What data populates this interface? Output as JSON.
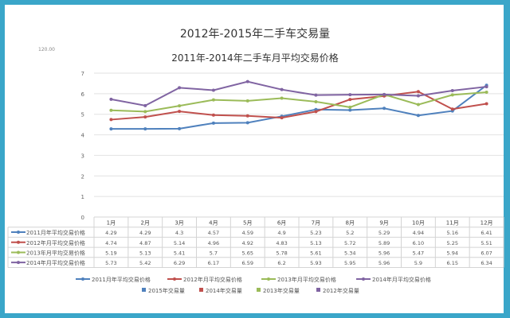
{
  "chart_data": {
    "type": "line",
    "outer_title": "2012年-2015年二手车交易量",
    "outer_axis_fragment": "120.00",
    "title": "2011年-2014年二手车月平均交易价格",
    "categories": [
      "1月",
      "2月",
      "3月",
      "4月",
      "5月",
      "6月",
      "7月",
      "8月",
      "9月",
      "10月",
      "11月",
      "12月"
    ],
    "ylim": [
      0,
      7
    ],
    "yticks": [
      0,
      1,
      2,
      3,
      4,
      5,
      6,
      7
    ],
    "grid": true,
    "legend_position": "bottom",
    "series": [
      {
        "name": "2011月年平均交易价格",
        "color": "#4f81bd",
        "values": [
          4.29,
          4.29,
          4.3,
          4.57,
          4.59,
          4.9,
          5.23,
          5.2,
          5.29,
          4.94,
          5.16,
          6.41
        ]
      },
      {
        "name": "2012年月平均交易价格",
        "color": "#c0504d",
        "values": [
          4.74,
          4.87,
          5.14,
          4.96,
          4.92,
          4.83,
          5.13,
          5.72,
          5.89,
          6.1,
          5.25,
          5.51
        ]
      },
      {
        "name": "2013年月平均交易价格",
        "color": "#9bbb59",
        "values": [
          5.19,
          5.13,
          5.41,
          5.7,
          5.65,
          5.78,
          5.61,
          5.34,
          5.96,
          5.47,
          5.94,
          6.07
        ]
      },
      {
        "name": "2014年月平均交易价格",
        "color": "#8064a2",
        "values": [
          5.73,
          5.42,
          6.29,
          6.17,
          6.59,
          6.2,
          5.93,
          5.95,
          5.96,
          5.9,
          6.15,
          6.34
        ]
      }
    ],
    "table_labels": [
      "2011月年平均交易价格",
      "2012年月平均交易价格",
      "2013年月平均交易价格",
      "2014年月平均交易价格"
    ],
    "table_values": [
      [
        "4.29",
        "4.29",
        "4.3",
        "4.57",
        "4.59",
        "4.9",
        "5.23",
        "5.2",
        "5.29",
        "4.94",
        "5.16",
        "6.41"
      ],
      [
        "4.74",
        "4.87",
        "5.14",
        "4.96",
        "4.92",
        "4.83",
        "5.13",
        "5.72",
        "5.89",
        "6.10",
        "5.25",
        "5.51"
      ],
      [
        "5.19",
        "5.13",
        "5.41",
        "5.7",
        "5.65",
        "5.78",
        "5.61",
        "5.34",
        "5.96",
        "5.47",
        "5.94",
        "6.07"
      ],
      [
        "5.73",
        "5.42",
        "6.29",
        "6.17",
        "6.59",
        "6.2",
        "5.93",
        "5.95",
        "5.96",
        "5.9",
        "6.15",
        "6.34"
      ]
    ],
    "bar_legend": [
      {
        "name": "2015年交易量",
        "color": "#4f81bd"
      },
      {
        "name": "2014年交易量",
        "color": "#c0504d"
      },
      {
        "name": "2013年交易量",
        "color": "#9bbb59"
      },
      {
        "name": "2012年交易量",
        "color": "#8064a2"
      }
    ]
  }
}
